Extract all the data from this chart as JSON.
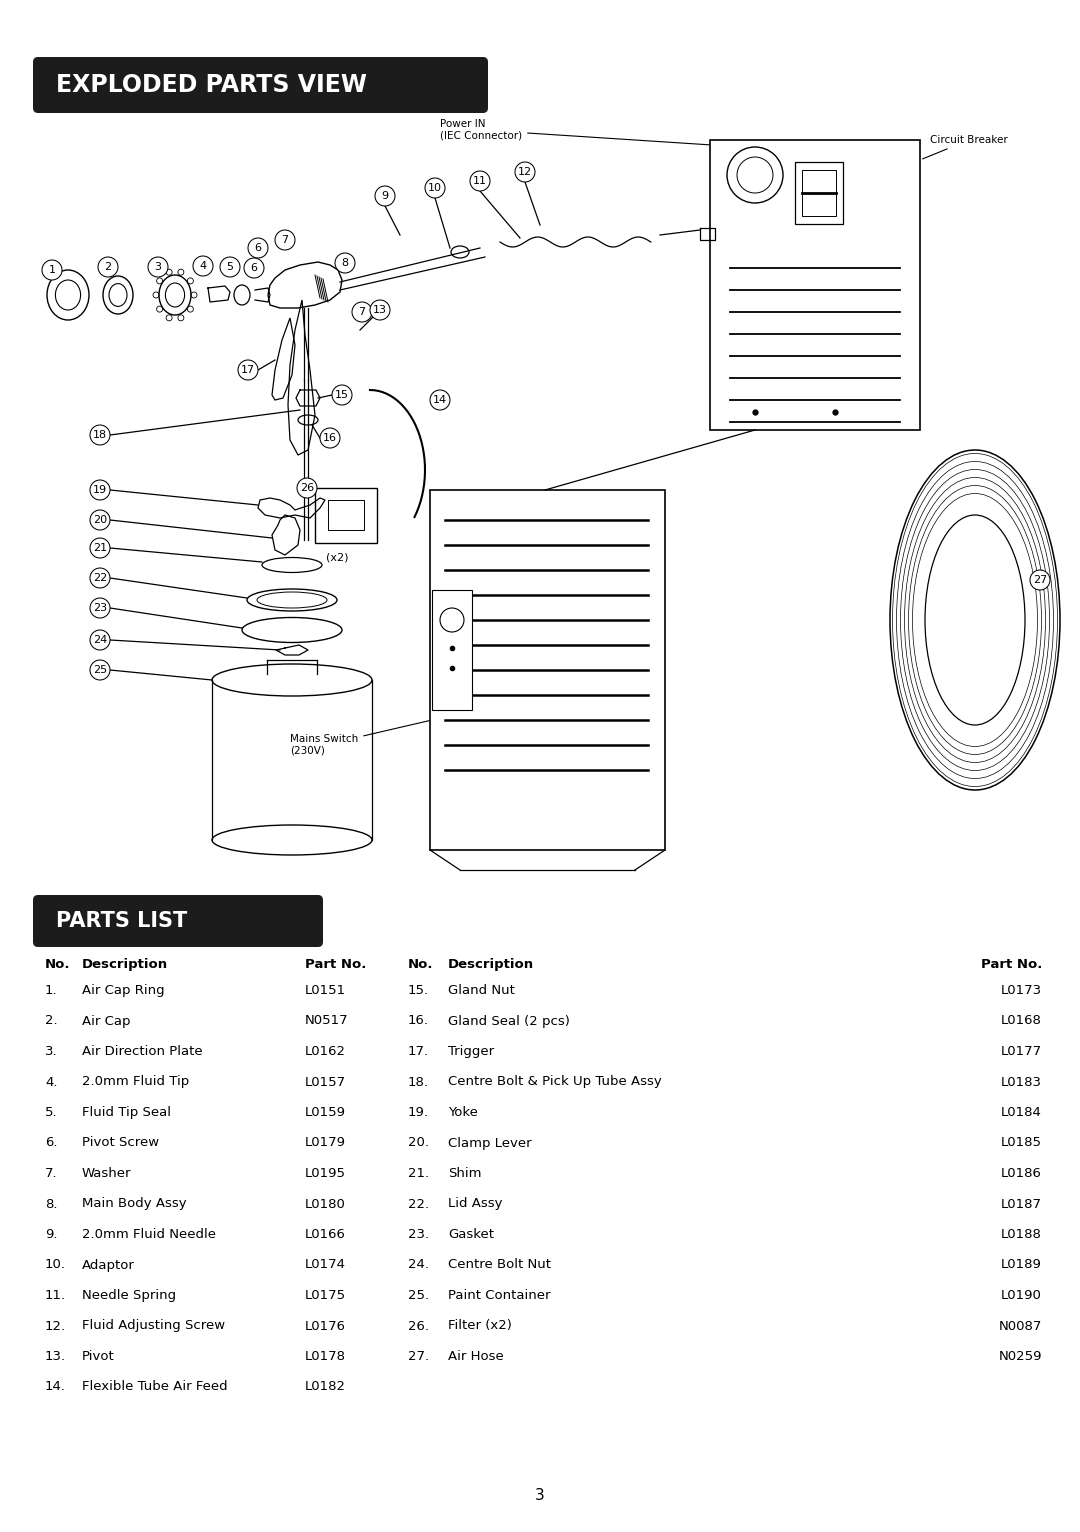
{
  "page_bg": "#ffffff",
  "header1_text": "EXPLODED PARTS VIEW",
  "header2_text": "PARTS LIST",
  "header_bg": "#1c1c1c",
  "header_text_color": "#ffffff",
  "parts_left": [
    [
      "1.",
      "Air Cap Ring",
      "L0151"
    ],
    [
      "2.",
      "Air Cap",
      "N0517"
    ],
    [
      "3.",
      "Air Direction Plate",
      "L0162"
    ],
    [
      "4.",
      "2.0mm Fluid Tip",
      "L0157"
    ],
    [
      "5.",
      "Fluid Tip Seal",
      "L0159"
    ],
    [
      "6.",
      "Pivot Screw",
      "L0179"
    ],
    [
      "7.",
      "Washer",
      "L0195"
    ],
    [
      "8.",
      "Main Body Assy",
      "L0180"
    ],
    [
      "9.",
      "2.0mm Fluid Needle",
      "L0166"
    ],
    [
      "10.",
      "Adaptor",
      "L0174"
    ],
    [
      "11.",
      "Needle Spring",
      "L0175"
    ],
    [
      "12.",
      "Fluid Adjusting Screw",
      "L0176"
    ],
    [
      "13.",
      "Pivot",
      "L0178"
    ],
    [
      "14.",
      "Flexible Tube Air Feed",
      "L0182"
    ]
  ],
  "parts_right": [
    [
      "15.",
      "Gland Nut",
      "L0173"
    ],
    [
      "16.",
      "Gland Seal (2 pcs)",
      "L0168"
    ],
    [
      "17.",
      "Trigger",
      "L0177"
    ],
    [
      "18.",
      "Centre Bolt & Pick Up Tube Assy",
      "L0183"
    ],
    [
      "19.",
      "Yoke",
      "L0184"
    ],
    [
      "20.",
      "Clamp Lever",
      "L0185"
    ],
    [
      "21.",
      "Shim",
      "L0186"
    ],
    [
      "22.",
      "Lid Assy",
      "L0187"
    ],
    [
      "23.",
      "Gasket",
      "L0188"
    ],
    [
      "24.",
      "Centre Bolt Nut",
      "L0189"
    ],
    [
      "25.",
      "Paint Container",
      "L0190"
    ],
    [
      "26.",
      "Filter (x2)",
      "N0087"
    ],
    [
      "27.",
      "Air Hose",
      "N0259"
    ]
  ],
  "page_number": "3",
  "diagram_note_power": "Power IN\n(IEC Connector)",
  "diagram_note_breaker": "Circuit Breaker",
  "diagram_note_mains": "Mains Switch\n(230V)",
  "filter_label": "(x2)"
}
